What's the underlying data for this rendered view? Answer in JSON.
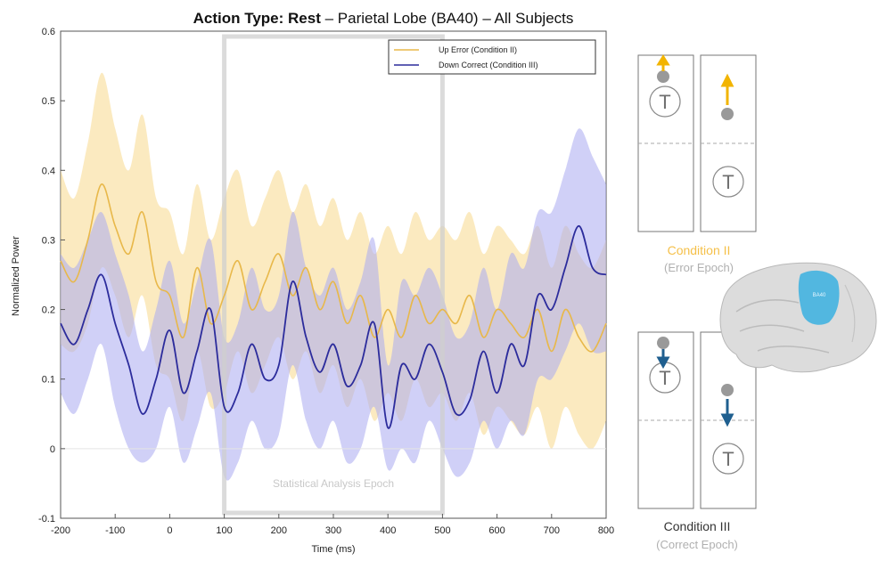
{
  "chart_data": {
    "type": "line",
    "title_bold": "Action Type: Rest",
    "title_rest": " – Parietal Lobe (BA40) – All Subjects",
    "xlabel": "Time (ms)",
    "ylabel": "Normalized Power",
    "xlim": [
      -200,
      800
    ],
    "ylim": [
      -0.1,
      0.6
    ],
    "xticks": [
      -200,
      -100,
      0,
      100,
      200,
      300,
      400,
      500,
      600,
      700,
      800
    ],
    "yticks": [
      -0.1,
      0,
      0.1,
      0.2,
      0.3,
      0.4,
      0.5,
      0.6
    ],
    "grid": false,
    "legend_position": "top-right",
    "epoch": {
      "label": "Statistical Analysis Epoch",
      "start": 100,
      "end": 500
    },
    "x": [
      -200,
      -175,
      -150,
      -125,
      -100,
      -75,
      -50,
      -25,
      0,
      25,
      50,
      75,
      100,
      125,
      150,
      175,
      200,
      225,
      250,
      275,
      300,
      325,
      350,
      375,
      400,
      425,
      450,
      475,
      500,
      525,
      550,
      575,
      600,
      625,
      650,
      675,
      700,
      725,
      750,
      775,
      800
    ],
    "series": [
      {
        "name": "Up Error (Condition II)",
        "color": "#e8b84a",
        "band_color": "#f7d88c",
        "values": [
          0.27,
          0.24,
          0.3,
          0.38,
          0.32,
          0.28,
          0.34,
          0.24,
          0.22,
          0.16,
          0.26,
          0.18,
          0.22,
          0.27,
          0.2,
          0.24,
          0.28,
          0.22,
          0.26,
          0.2,
          0.24,
          0.18,
          0.22,
          0.16,
          0.2,
          0.16,
          0.22,
          0.18,
          0.2,
          0.18,
          0.22,
          0.16,
          0.2,
          0.18,
          0.16,
          0.2,
          0.14,
          0.2,
          0.16,
          0.14,
          0.18
        ],
        "lower": [
          0.15,
          0.14,
          0.18,
          0.26,
          0.22,
          0.16,
          0.22,
          0.12,
          0.1,
          0.04,
          0.14,
          0.06,
          0.08,
          0.14,
          0.08,
          0.12,
          0.16,
          0.1,
          0.14,
          0.08,
          0.12,
          0.06,
          0.1,
          0.04,
          0.08,
          0.04,
          0.1,
          0.06,
          0.08,
          0.04,
          0.08,
          0.02,
          0.06,
          0.04,
          0.02,
          0.06,
          0.0,
          0.06,
          0.02,
          0.0,
          0.04
        ],
        "upper": [
          0.4,
          0.36,
          0.44,
          0.54,
          0.46,
          0.4,
          0.48,
          0.36,
          0.34,
          0.28,
          0.38,
          0.3,
          0.36,
          0.4,
          0.32,
          0.36,
          0.4,
          0.34,
          0.38,
          0.32,
          0.36,
          0.3,
          0.34,
          0.28,
          0.32,
          0.28,
          0.34,
          0.3,
          0.32,
          0.3,
          0.34,
          0.28,
          0.32,
          0.3,
          0.28,
          0.32,
          0.26,
          0.32,
          0.28,
          0.26,
          0.3
        ]
      },
      {
        "name": "Down Correct (Condition III)",
        "color": "#2c2c9c",
        "band_color": "#aaaaf0",
        "values": [
          0.18,
          0.15,
          0.2,
          0.25,
          0.18,
          0.12,
          0.05,
          0.1,
          0.17,
          0.08,
          0.14,
          0.2,
          0.06,
          0.08,
          0.15,
          0.1,
          0.12,
          0.24,
          0.16,
          0.11,
          0.15,
          0.09,
          0.12,
          0.18,
          0.03,
          0.12,
          0.1,
          0.15,
          0.11,
          0.05,
          0.07,
          0.14,
          0.08,
          0.15,
          0.12,
          0.22,
          0.2,
          0.26,
          0.32,
          0.26,
          0.25
        ],
        "lower": [
          0.08,
          0.05,
          0.1,
          0.15,
          0.06,
          0.0,
          -0.02,
          0.0,
          0.06,
          -0.02,
          0.03,
          0.08,
          -0.04,
          -0.02,
          0.04,
          0.0,
          0.02,
          0.12,
          0.04,
          0.0,
          0.04,
          -0.02,
          0.0,
          0.06,
          -0.03,
          0.0,
          -0.02,
          0.04,
          0.0,
          -0.04,
          -0.02,
          0.04,
          0.0,
          0.04,
          0.02,
          0.1,
          0.1,
          0.14,
          0.18,
          0.14,
          0.14
        ],
        "upper": [
          0.28,
          0.26,
          0.3,
          0.34,
          0.28,
          0.22,
          0.14,
          0.2,
          0.27,
          0.18,
          0.24,
          0.3,
          0.16,
          0.18,
          0.26,
          0.2,
          0.22,
          0.34,
          0.26,
          0.22,
          0.26,
          0.2,
          0.24,
          0.3,
          0.12,
          0.24,
          0.22,
          0.26,
          0.22,
          0.16,
          0.18,
          0.26,
          0.2,
          0.28,
          0.26,
          0.34,
          0.34,
          0.4,
          0.46,
          0.42,
          0.38
        ]
      }
    ]
  },
  "conditions": {
    "cond2_title": "Condition II",
    "cond2_sub": "(Error Epoch)",
    "cond2_color": "#f5c04a",
    "cond3_title": "Condition III",
    "cond3_sub": "(Correct Epoch)",
    "cond3_color": "#333333",
    "target_letter": "T",
    "up_arrow_color": "#f2b400",
    "down_arrow_color": "#1f5f8f"
  },
  "brain": {
    "region_label": "BA40",
    "region_color": "#3ab0e0"
  }
}
